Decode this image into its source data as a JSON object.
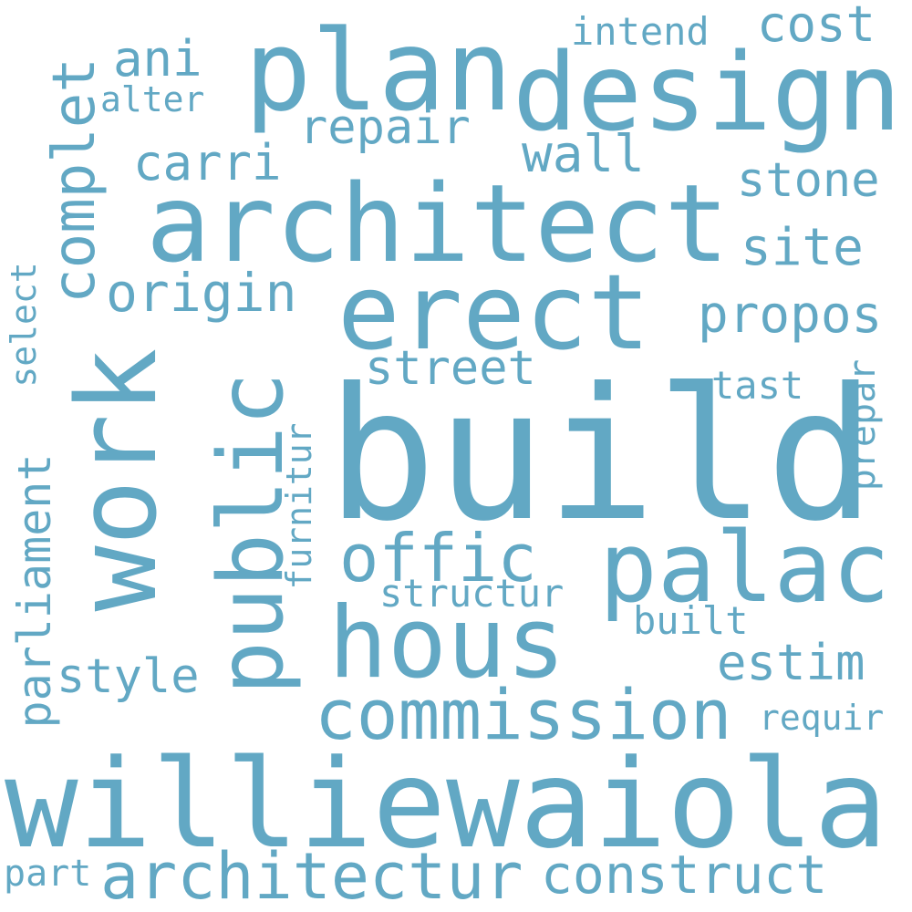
{
  "color": "#62a8c4",
  "words": {
    "build": "build",
    "williewaiola": "williewaiola",
    "architect": "architect",
    "design": "design",
    "plan": "plan",
    "erect": "erect",
    "work": "work",
    "public": "public",
    "palac": "palac",
    "hous": "hous",
    "commission": "commission",
    "architectur": "architectur",
    "construct": "construct",
    "complet": "complet",
    "parliament": "parliament",
    "offic": "offic",
    "origin": "origin",
    "propos": "propos",
    "street": "street",
    "carri": "carri",
    "repair": "repair",
    "stone": "stone",
    "site": "site",
    "wall": "wall",
    "style": "style",
    "estim": "estim",
    "cost": "cost",
    "intend": "intend",
    "ani": "ani",
    "alter": "alter",
    "select": "select",
    "furnitur": "furnitur",
    "tast": "tast",
    "prepar": "prepar",
    "structur": "structur",
    "built": "built",
    "requir": "requir",
    "part": "part"
  }
}
